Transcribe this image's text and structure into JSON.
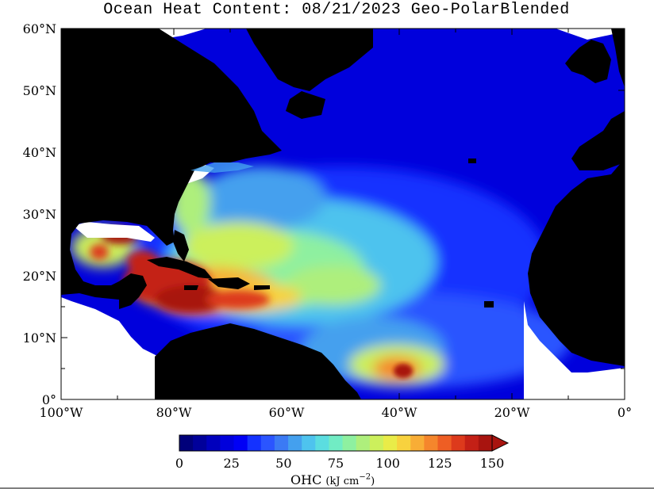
{
  "title": "Ocean Heat Content: 08/21/2023 Geo-PolarBlended",
  "map": {
    "lon_range": [
      -100,
      0
    ],
    "lat_range": [
      0,
      60
    ],
    "lat_labels": [
      "0°",
      "10°N",
      "20°N",
      "30°N",
      "40°N",
      "50°N",
      "60°N"
    ],
    "lon_labels": [
      "100°W",
      "80°W",
      "60°W",
      "40°W",
      "20°W",
      "0°"
    ],
    "land_color": "#000000",
    "no_data_color": "#ffffff",
    "hotspots": [
      {
        "region": "Gulf of Mexico / Caribbean",
        "level": "high (125-150)"
      },
      {
        "region": "Equatorial Atlantic near 5°N 38°W",
        "level": "high (125-150)"
      },
      {
        "region": "Mid-Atlantic 10-30°N",
        "level": "moderate (60-100)"
      },
      {
        "region": "North Atlantic > 40°N",
        "level": "low (0-15)"
      }
    ]
  },
  "colorbar": {
    "labels": [
      "0",
      "25",
      "50",
      "75",
      "100",
      "125",
      "150"
    ],
    "min": 0,
    "max": 150,
    "unit_main": "OHC",
    "unit_detail": "(kJ cm",
    "unit_exp": "−2",
    "unit_close": ")",
    "colors": [
      "#00007a",
      "#00009a",
      "#0000bd",
      "#0000dc",
      "#0000f6",
      "#1432ff",
      "#2b55ff",
      "#3b7af4",
      "#44a0ee",
      "#4ec3ee",
      "#5bdde0",
      "#71ecc4",
      "#8ef0a0",
      "#aeef7c",
      "#ccf05c",
      "#e9ec48",
      "#f8d23e",
      "#f8ad36",
      "#f5862c",
      "#ee5e24",
      "#dd3a1c",
      "#c42016",
      "#a8140f"
    ]
  }
}
